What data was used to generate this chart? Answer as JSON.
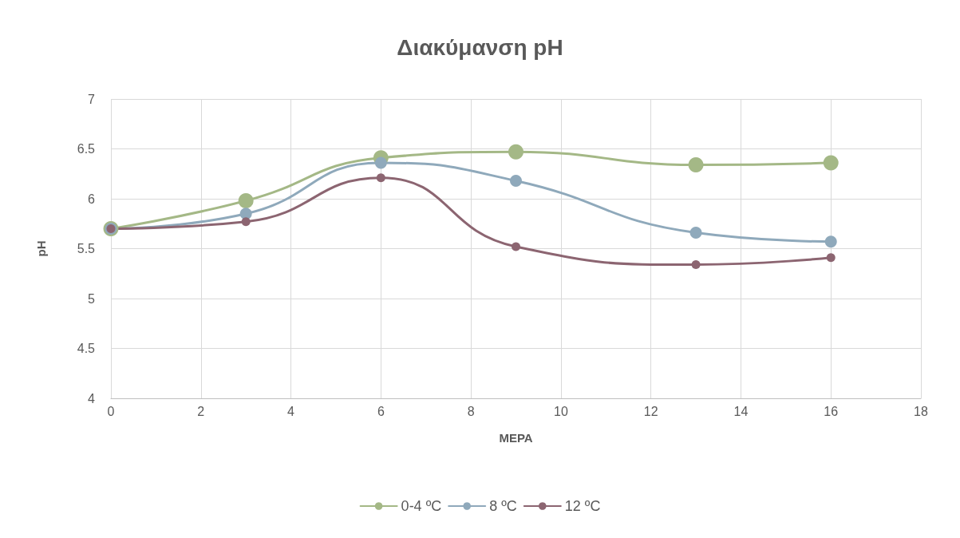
{
  "chart_data": {
    "type": "line",
    "title": "Διακύμανση pH",
    "xlabel": "ΜΕΡΑ",
    "ylabel": "pH",
    "xlim": [
      0,
      18
    ],
    "xticks": [
      0,
      2,
      4,
      6,
      8,
      10,
      12,
      14,
      16,
      18
    ],
    "ylim": [
      4,
      7
    ],
    "yticks": [
      4,
      4.5,
      5,
      5.5,
      6,
      6.5,
      7
    ],
    "grid": true,
    "legend": "bottom",
    "marker": "circle",
    "line_style": "solid",
    "series": [
      {
        "name": "0-4 ºC",
        "color": "#a4b886",
        "x": [
          0,
          3,
          6,
          9,
          13,
          16
        ],
        "values": [
          5.7,
          5.98,
          6.41,
          6.47,
          6.34,
          6.36
        ]
      },
      {
        "name": "8 ºC",
        "color": "#8fa9bb",
        "x": [
          0,
          3,
          6,
          9,
          13,
          16
        ],
        "values": [
          5.7,
          5.85,
          6.36,
          6.18,
          5.66,
          5.57
        ]
      },
      {
        "name": "12 ºC",
        "color": "#8c6571",
        "x": [
          0,
          3,
          6,
          9,
          13,
          16
        ],
        "values": [
          5.7,
          5.77,
          6.21,
          5.52,
          5.34,
          5.41
        ]
      }
    ]
  }
}
